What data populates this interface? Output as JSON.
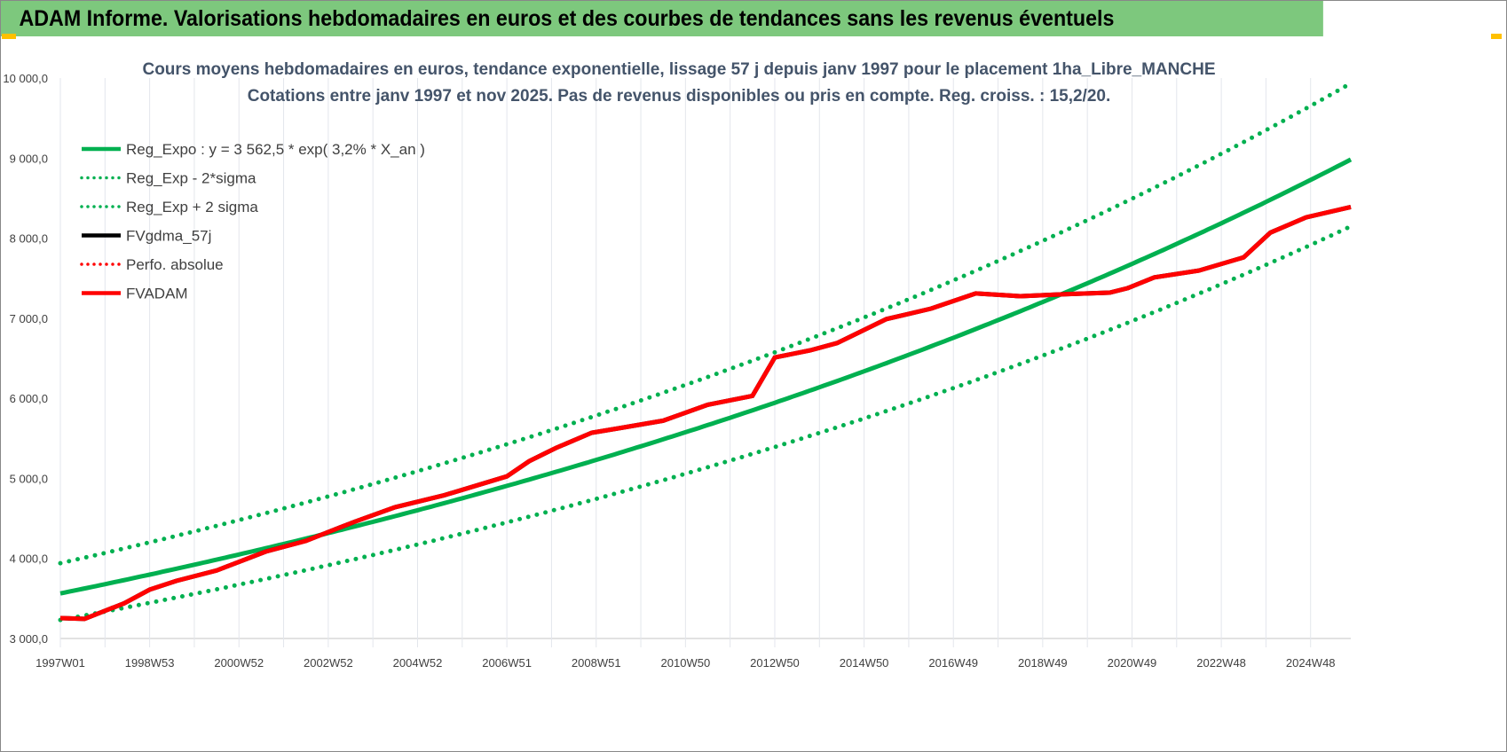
{
  "header": {
    "title": "ADAM Informe. Valorisations hebdomadaires en euros et des courbes de tendances sans les revenus éventuels"
  },
  "chart_data": {
    "type": "line",
    "title": "Cours moyens hebdomadaires en euros, tendance exponentielle, lissage 57 j depuis janv 1997  pour le  placement 1ha_Libre_MANCHE",
    "subtitle": "Cotations entre janv 1997 et nov 2025. Pas de revenus disponibles ou pris en compte. Reg. croiss. : 15,2/20.",
    "xlabel": "",
    "ylabel": "",
    "xlim_years": [
      0,
      28.9
    ],
    "ylim": [
      3000,
      10000
    ],
    "y_ticks": [
      {
        "v": 3000,
        "label": "3 000,0"
      },
      {
        "v": 4000,
        "label": "4 000,0"
      },
      {
        "v": 5000,
        "label": "5 000,0"
      },
      {
        "v": 6000,
        "label": "6 000,0"
      },
      {
        "v": 7000,
        "label": "7 000,0"
      },
      {
        "v": 8000,
        "label": "8 000,0"
      },
      {
        "v": 9000,
        "label": "9 000,0"
      },
      {
        "v": 10000,
        "label": "10 000,0"
      }
    ],
    "x_ticks": [
      "1997W01",
      "1998W53",
      "2000W52",
      "2002W52",
      "2004W52",
      "2006W51",
      "2008W51",
      "2010W50",
      "2012W50",
      "2014W50",
      "2016W49",
      "2018W49",
      "2020W49",
      "2022W48",
      "2024W48"
    ],
    "regression": {
      "a": 3562.5,
      "rate": 0.032,
      "upper_factor": 1.106,
      "lower_factor": 0.907
    },
    "legend": [
      {
        "label": "Reg_Expo : y = 3 562,5 * exp( 3,2% *  X_an )",
        "color": "#00b050",
        "style": "solid"
      },
      {
        "label": "Reg_Exp - 2*sigma",
        "color": "#00b050",
        "style": "dotted"
      },
      {
        "label": "Reg_Exp + 2 sigma",
        "color": "#00b050",
        "style": "dotted"
      },
      {
        "label": "FVgdma_57j",
        "color": "#000000",
        "style": "solid"
      },
      {
        "label": "Perfo. absolue",
        "color": "#ff0000",
        "style": "dotted"
      },
      {
        "label": "FVADAM",
        "color": "#ff0000",
        "style": "solid"
      }
    ],
    "series_fvadam": {
      "x_years": [
        0,
        0.54,
        1.43,
        2.0,
        2.6,
        3.5,
        4.6,
        5.5,
        6.0,
        6.6,
        7.5,
        8.6,
        10.0,
        10.5,
        11.1,
        11.9,
        12.5,
        13.5,
        14.5,
        15.5,
        16.0,
        16.8,
        17.4,
        18.5,
        19.5,
        20.5,
        21.5,
        22.5,
        23.5,
        23.9,
        24.5,
        25.5,
        26.5,
        27.1,
        27.9,
        28.9
      ],
      "values": [
        3255,
        3245,
        3440,
        3610,
        3720,
        3850,
        4085,
        4220,
        4330,
        4460,
        4640,
        4790,
        5025,
        5215,
        5380,
        5570,
        5625,
        5720,
        5920,
        6030,
        6510,
        6600,
        6690,
        6990,
        7120,
        7310,
        7275,
        7300,
        7320,
        7375,
        7510,
        7595,
        7760,
        8070,
        8260,
        8390
      ]
    }
  }
}
